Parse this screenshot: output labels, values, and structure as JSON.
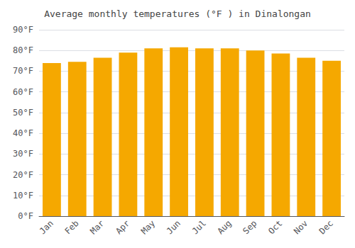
{
  "chart_data": {
    "type": "bar",
    "title": "Average monthly temperatures (°F ) in Dinalongan",
    "categories": [
      "Jan",
      "Feb",
      "Mar",
      "Apr",
      "May",
      "Jun",
      "Jul",
      "Aug",
      "Sep",
      "Oct",
      "Nov",
      "Dec"
    ],
    "values": [
      73.9,
      74.5,
      76.5,
      79.0,
      81.0,
      81.5,
      81.0,
      81.0,
      80.0,
      78.5,
      76.5,
      75.0
    ],
    "color": "#F5A800",
    "ylim": [
      0,
      90
    ],
    "yticks": [
      {
        "value": 0,
        "label": "0°F"
      },
      {
        "value": 10,
        "label": "10°F"
      },
      {
        "value": 20,
        "label": "20°F"
      },
      {
        "value": 30,
        "label": "30°F"
      },
      {
        "value": 40,
        "label": "40°F"
      },
      {
        "value": 50,
        "label": "50°F"
      },
      {
        "value": 60,
        "label": "60°F"
      },
      {
        "value": 70,
        "label": "70°F"
      },
      {
        "value": 80,
        "label": "80°F"
      },
      {
        "value": 90,
        "label": "90°F"
      }
    ],
    "grid": true
  }
}
